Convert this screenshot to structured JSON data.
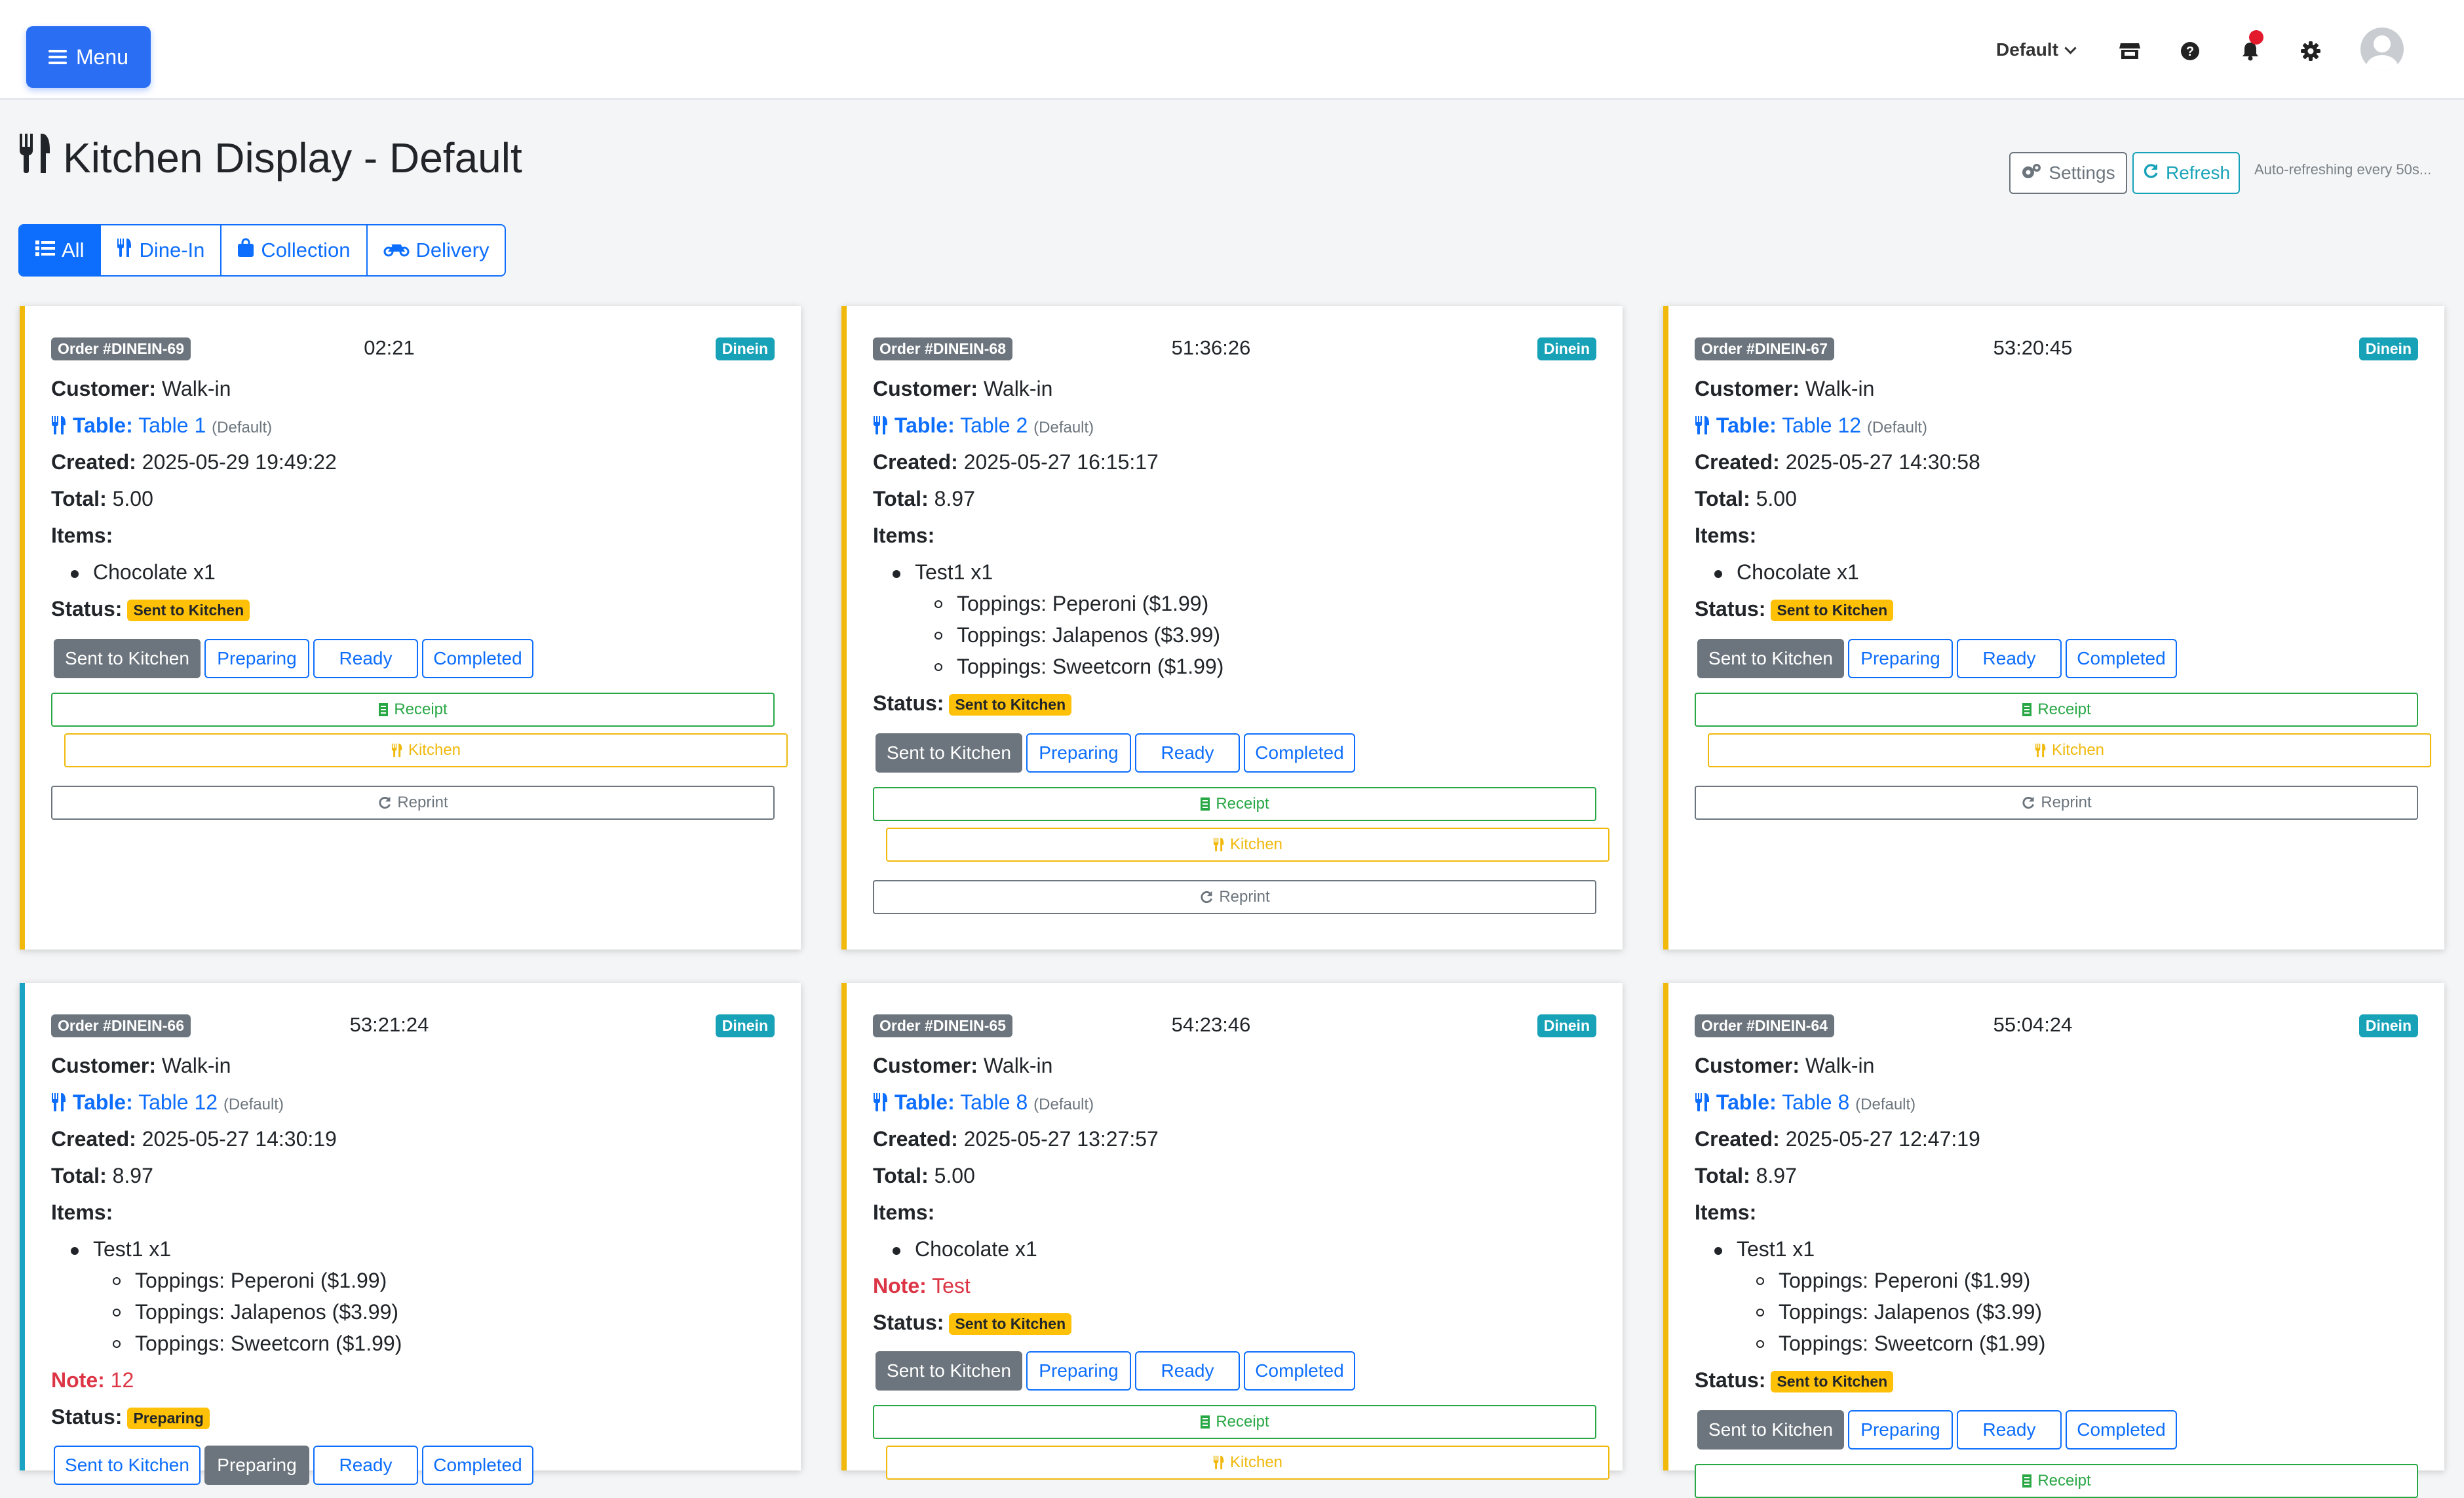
{
  "header": {
    "menu_label": "Menu",
    "store_selector": "Default"
  },
  "page": {
    "title": "Kitchen Display - Default",
    "settings_label": "Settings",
    "refresh_label": "Refresh",
    "auto_refresh_text": "Auto-refreshing every 50s..."
  },
  "filters": [
    "All",
    "Dine-In",
    "Collection",
    "Delivery"
  ],
  "labels": {
    "customer": "Customer:",
    "table": "Table:",
    "created": "Created:",
    "total": "Total:",
    "items": "Items:",
    "note": "Note:",
    "status": "Status:",
    "sent_to_kitchen": "Sent to Kitchen",
    "preparing": "Preparing",
    "ready": "Ready",
    "completed": "Completed",
    "receipt": "Receipt",
    "kitchen": "Kitchen",
    "reprint": "Reprint"
  },
  "orders": [
    {
      "order_id": "Order #DINEIN-69",
      "timer": "02:21",
      "type": "Dinein",
      "customer": "Walk-in",
      "table": "Table 1",
      "table_location": "(Default)",
      "created": "2025-05-29 19:49:22",
      "total": "5.00",
      "items": [
        {
          "name": "Chocolate x1",
          "subs": []
        }
      ],
      "note": "",
      "status": "Sent to Kitchen"
    },
    {
      "order_id": "Order #DINEIN-68",
      "timer": "51:36:26",
      "type": "Dinein",
      "customer": "Walk-in",
      "table": "Table 2",
      "table_location": "(Default)",
      "created": "2025-05-27 16:15:17",
      "total": "8.97",
      "items": [
        {
          "name": "Test1 x1",
          "subs": [
            "Toppings: Peperoni ($1.99)",
            "Toppings: Jalapenos ($3.99)",
            "Toppings: Sweetcorn ($1.99)"
          ]
        }
      ],
      "note": "",
      "status": "Sent to Kitchen"
    },
    {
      "order_id": "Order #DINEIN-67",
      "timer": "53:20:45",
      "type": "Dinein",
      "customer": "Walk-in",
      "table": "Table 12",
      "table_location": "(Default)",
      "created": "2025-05-27 14:30:58",
      "total": "5.00",
      "items": [
        {
          "name": "Chocolate x1",
          "subs": []
        }
      ],
      "note": "",
      "status": "Sent to Kitchen"
    },
    {
      "order_id": "Order #DINEIN-66",
      "timer": "53:21:24",
      "type": "Dinein",
      "customer": "Walk-in",
      "table": "Table 12",
      "table_location": "(Default)",
      "created": "2025-05-27 14:30:19",
      "total": "8.97",
      "items": [
        {
          "name": "Test1 x1",
          "subs": [
            "Toppings: Peperoni ($1.99)",
            "Toppings: Jalapenos ($3.99)",
            "Toppings: Sweetcorn ($1.99)"
          ]
        }
      ],
      "note": "12",
      "status": "Preparing"
    },
    {
      "order_id": "Order #DINEIN-65",
      "timer": "54:23:46",
      "type": "Dinein",
      "customer": "Walk-in",
      "table": "Table 8",
      "table_location": "(Default)",
      "created": "2025-05-27 13:27:57",
      "total": "5.00",
      "items": [
        {
          "name": "Chocolate x1",
          "subs": []
        }
      ],
      "note": "Test",
      "status": "Sent to Kitchen"
    },
    {
      "order_id": "Order #DINEIN-64",
      "timer": "55:04:24",
      "type": "Dinein",
      "customer": "Walk-in",
      "table": "Table 8",
      "table_location": "(Default)",
      "created": "2025-05-27 12:47:19",
      "total": "8.97",
      "items": [
        {
          "name": "Test1 x1",
          "subs": [
            "Toppings: Peperoni ($1.99)",
            "Toppings: Jalapenos ($3.99)",
            "Toppings: Sweetcorn ($1.99)"
          ]
        }
      ],
      "note": "",
      "status": "Sent to Kitchen"
    }
  ]
}
